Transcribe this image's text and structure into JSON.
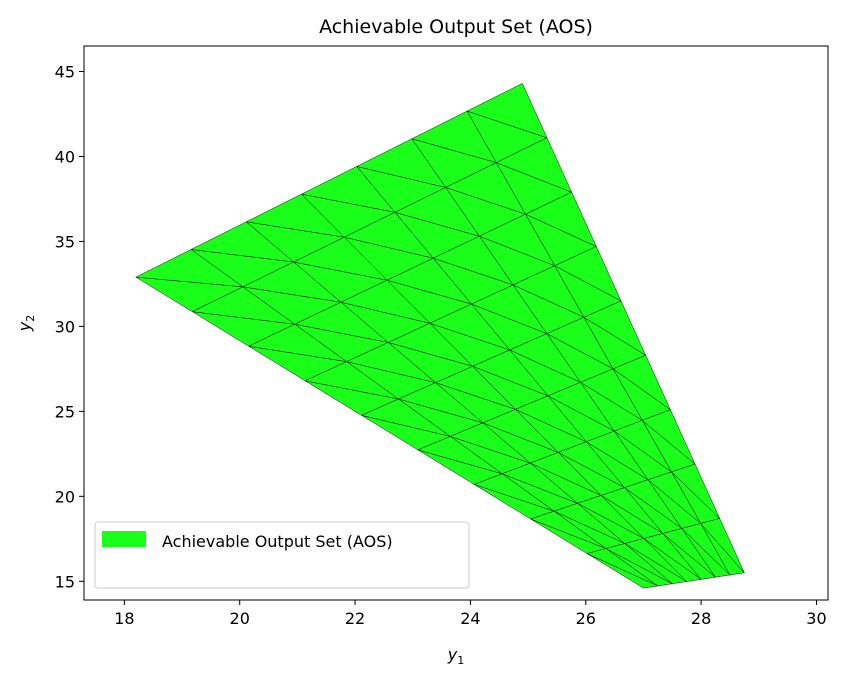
{
  "chart_data": {
    "type": "area",
    "title": "Achievable Output Set (AOS)",
    "xlabel": "y",
    "xlabel_sub": "1",
    "ylabel": "y",
    "ylabel_sub": "2",
    "xlim": [
      17.3,
      30.2
    ],
    "ylim": [
      13.9,
      46.5
    ],
    "xticks": [
      18,
      20,
      22,
      24,
      26,
      28,
      30
    ],
    "yticks": [
      15,
      20,
      25,
      30,
      35,
      40,
      45
    ],
    "fill_color": "#1aff1a",
    "edge_color": "#000000",
    "legend": {
      "label": "Achievable Output Set (AOS)",
      "loc": "lower left"
    },
    "grid": false,
    "mesh": {
      "rows": 9,
      "cols": 7,
      "corners": {
        "row0_col0": [
          18.2,
          32.9
        ],
        "row0_colN": [
          24.9,
          44.3
        ],
        "rowN_col0": [
          27.0,
          14.6
        ],
        "rowN_colN": [
          28.75,
          15.5
        ]
      }
    }
  }
}
